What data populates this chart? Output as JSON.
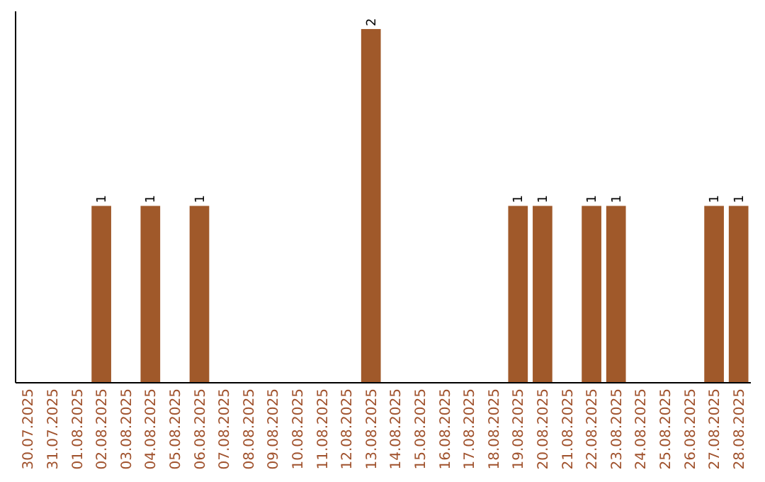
{
  "chart_data": {
    "type": "bar",
    "categories": [
      "30.07.2025",
      "31.07.2025",
      "01.08.2025",
      "02.08.2025",
      "03.08.2025",
      "04.08.2025",
      "05.08.2025",
      "06.08.2025",
      "07.08.2025",
      "08.08.2025",
      "09.08.2025",
      "10.08.2025",
      "11.08.2025",
      "12.08.2025",
      "13.08.2025",
      "14.08.2025",
      "15.08.2025",
      "16.08.2025",
      "17.08.2025",
      "18.08.2025",
      "19.08.2025",
      "20.08.2025",
      "21.08.2025",
      "22.08.2025",
      "23.08.2025",
      "24.08.2025",
      "25.08.2025",
      "26.08.2025",
      "27.08.2025",
      "28.08.2025"
    ],
    "values": [
      0,
      0,
      0,
      1,
      0,
      1,
      0,
      1,
      0,
      0,
      0,
      0,
      0,
      0,
      2,
      0,
      0,
      0,
      0,
      0,
      1,
      1,
      0,
      1,
      1,
      0,
      0,
      0,
      1,
      1
    ],
    "value_labels": [
      null,
      null,
      null,
      "1",
      null,
      "1",
      null,
      "1",
      null,
      null,
      null,
      null,
      null,
      null,
      "2",
      null,
      null,
      null,
      null,
      null,
      "1",
      "1",
      null,
      "1",
      "1",
      null,
      null,
      null,
      "1",
      "1"
    ],
    "color": "#a0592a",
    "tick_labels": "x"
  }
}
